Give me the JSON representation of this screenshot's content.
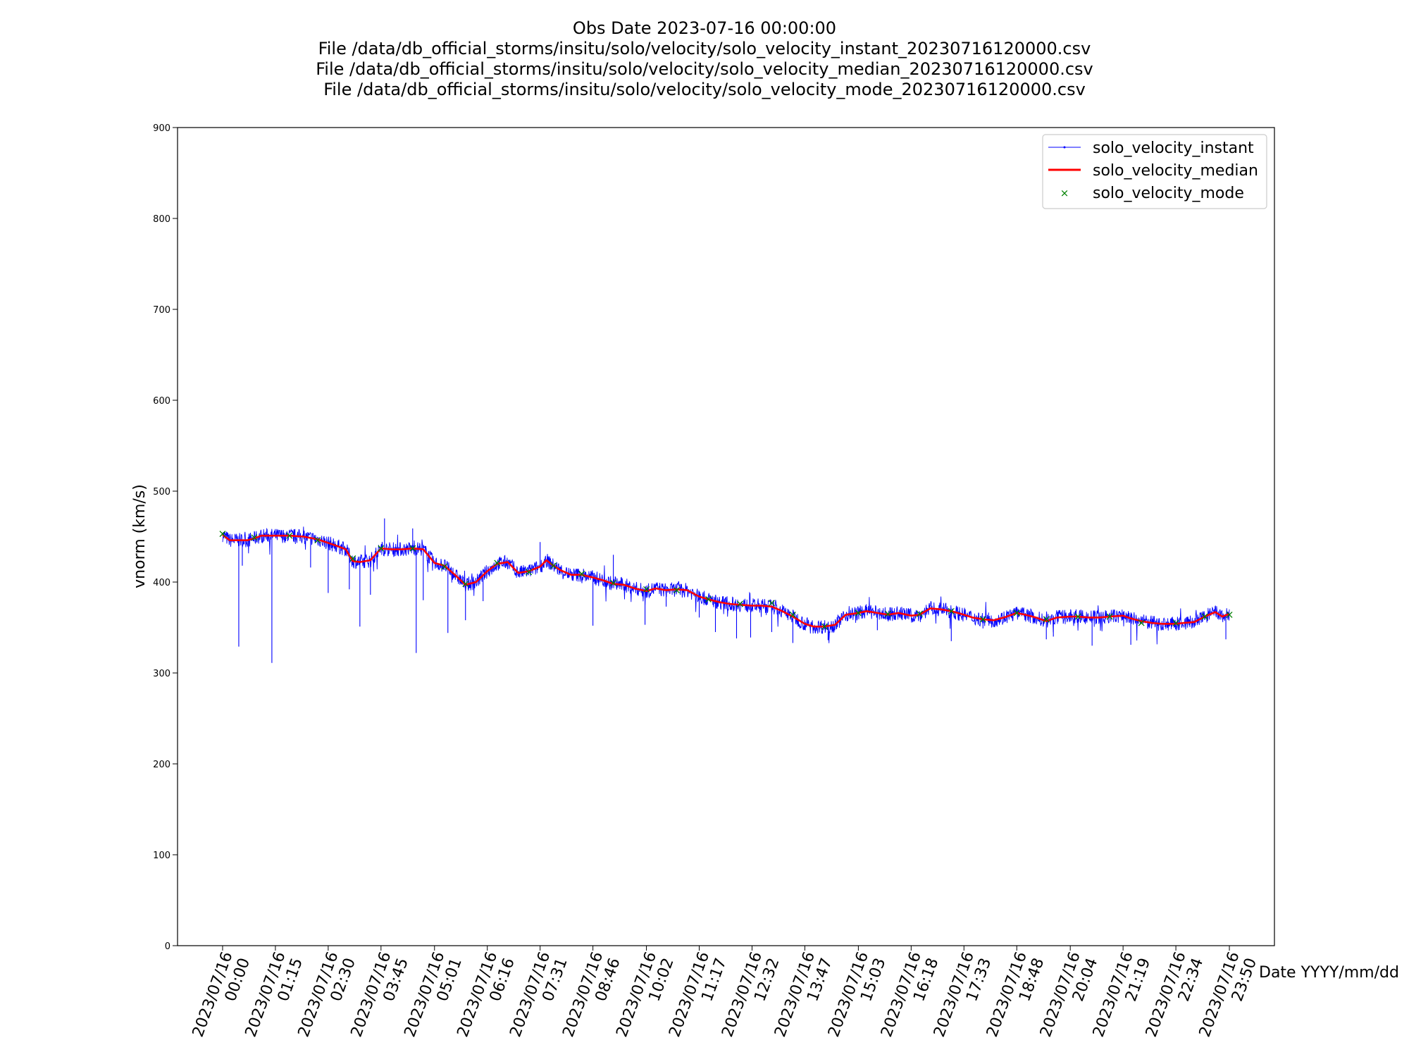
{
  "chart_data": {
    "type": "line",
    "title": [
      "Obs Date 2023-07-16 00:00:00",
      "File /data/db_official_storms/insitu/solo/velocity/solo_velocity_instant_20230716120000.csv",
      "File /data/db_official_storms/insitu/solo/velocity/solo_velocity_median_20230716120000.csv",
      "File /data/db_official_storms/insitu/solo/velocity/solo_velocity_mode_20230716120000.csv"
    ],
    "xlabel": "Date YYYY/mm/dd",
    "ylabel": "vnorm (km/s)",
    "ylim": [
      0,
      900
    ],
    "yticks": [
      0,
      100,
      200,
      300,
      400,
      500,
      600,
      700,
      800,
      900
    ],
    "xlim": [
      "2023/07/15 22:56",
      "2023/07/17 00:54"
    ],
    "xticks": [
      {
        "t": "00:00",
        "label": [
          "2023/07/16",
          "00:00"
        ]
      },
      {
        "t": "01:15",
        "label": [
          "2023/07/16",
          "01:15"
        ]
      },
      {
        "t": "02:30",
        "label": [
          "2023/07/16",
          "02:30"
        ]
      },
      {
        "t": "03:45",
        "label": [
          "2023/07/16",
          "03:45"
        ]
      },
      {
        "t": "05:01",
        "label": [
          "2023/07/16",
          "05:01"
        ]
      },
      {
        "t": "06:16",
        "label": [
          "2023/07/16",
          "06:16"
        ]
      },
      {
        "t": "07:31",
        "label": [
          "2023/07/16",
          "07:31"
        ]
      },
      {
        "t": "08:46",
        "label": [
          "2023/07/16",
          "08:46"
        ]
      },
      {
        "t": "10:02",
        "label": [
          "2023/07/16",
          "10:02"
        ]
      },
      {
        "t": "11:17",
        "label": [
          "2023/07/16",
          "11:17"
        ]
      },
      {
        "t": "12:32",
        "label": [
          "2023/07/16",
          "12:32"
        ]
      },
      {
        "t": "13:47",
        "label": [
          "2023/07/16",
          "13:47"
        ]
      },
      {
        "t": "15:03",
        "label": [
          "2023/07/16",
          "15:03"
        ]
      },
      {
        "t": "16:18",
        "label": [
          "2023/07/16",
          "16:18"
        ]
      },
      {
        "t": "17:33",
        "label": [
          "2023/07/16",
          "17:33"
        ]
      },
      {
        "t": "18:48",
        "label": [
          "2023/07/16",
          "18:48"
        ]
      },
      {
        "t": "20:04",
        "label": [
          "2023/07/16",
          "20:04"
        ]
      },
      {
        "t": "21:19",
        "label": [
          "2023/07/16",
          "21:19"
        ]
      },
      {
        "t": "22:34",
        "label": [
          "2023/07/16",
          "22:34"
        ]
      },
      {
        "t": "23:50",
        "label": [
          "2023/07/16",
          "23:50"
        ]
      }
    ],
    "grid": false,
    "legend_position": "top-right",
    "series": [
      {
        "name": "solo_velocity_instant",
        "color": "#0000ff",
        "style": "thin line with point markers",
        "x": [
          "00:00",
          "00:10",
          "00:23",
          "00:35",
          "00:45",
          "00:55",
          "01:15",
          "01:35",
          "01:55",
          "02:15",
          "02:30",
          "02:45",
          "02:55",
          "03:05",
          "03:15",
          "03:30",
          "03:45",
          "04:00",
          "04:15",
          "04:30",
          "04:45",
          "05:01",
          "05:15",
          "05:30",
          "05:45",
          "06:00",
          "06:16",
          "06:30",
          "06:45",
          "07:00",
          "07:15",
          "07:31",
          "07:40",
          "07:50",
          "08:00",
          "08:15",
          "08:30",
          "08:46",
          "09:00",
          "09:15",
          "09:30",
          "09:45",
          "10:02",
          "10:15",
          "10:30",
          "10:45",
          "11:00",
          "11:17",
          "11:30",
          "11:45",
          "12:00",
          "12:15",
          "12:32",
          "12:45",
          "13:00",
          "13:15",
          "13:30",
          "13:47",
          "14:00",
          "14:15",
          "14:30",
          "14:45",
          "15:03",
          "15:15",
          "15:30",
          "15:45",
          "16:00",
          "16:18",
          "16:30",
          "16:45",
          "17:00",
          "17:15",
          "17:33",
          "17:45",
          "18:00",
          "18:15",
          "18:30",
          "18:48",
          "19:00",
          "19:15",
          "19:30",
          "19:45",
          "20:04",
          "20:15",
          "20:30",
          "20:45",
          "21:00",
          "21:19",
          "21:30",
          "21:45",
          "22:00",
          "22:15",
          "22:34",
          "22:45",
          "23:00",
          "23:15",
          "23:30",
          "23:40",
          "23:50"
        ],
        "values": [
          452,
          446,
          446,
          446,
          448,
          451,
          451,
          451,
          450,
          447,
          443,
          439,
          436,
          423,
          422,
          424,
          437,
          436,
          436,
          437,
          436,
          421,
          418,
          408,
          397,
          400,
          412,
          420,
          422,
          410,
          412,
          417,
          424,
          418,
          413,
          408,
          408,
          405,
          402,
          398,
          397,
          393,
          390,
          393,
          391,
          392,
          391,
          384,
          381,
          378,
          376,
          375,
          374,
          374,
          373,
          368,
          362,
          354,
          351,
          351,
          353,
          364,
          366,
          368,
          366,
          364,
          366,
          363,
          364,
          371,
          370,
          368,
          364,
          361,
          359,
          358,
          361,
          366,
          364,
          361,
          357,
          361,
          362,
          362,
          361,
          361,
          362,
          363,
          360,
          357,
          355,
          354,
          354,
          355,
          356,
          362,
          367,
          362,
          365
        ],
        "spikes": [
          {
            "t": "00:23",
            "y": 329
          },
          {
            "t": "00:28",
            "y": 418
          },
          {
            "t": "01:10",
            "y": 311
          },
          {
            "t": "02:05",
            "y": 416
          },
          {
            "t": "02:30",
            "y": 388
          },
          {
            "t": "03:00",
            "y": 392
          },
          {
            "t": "03:15",
            "y": 351
          },
          {
            "t": "03:30",
            "y": 386
          },
          {
            "t": "03:50",
            "y": 470
          },
          {
            "t": "04:30",
            "y": 459
          },
          {
            "t": "04:35",
            "y": 322
          },
          {
            "t": "04:45",
            "y": 380
          },
          {
            "t": "05:20",
            "y": 344
          },
          {
            "t": "05:45",
            "y": 358
          },
          {
            "t": "06:10",
            "y": 379
          },
          {
            "t": "07:31",
            "y": 444
          },
          {
            "t": "08:46",
            "y": 352
          },
          {
            "t": "09:15",
            "y": 430
          },
          {
            "t": "10:00",
            "y": 353
          },
          {
            "t": "10:30",
            "y": 373
          },
          {
            "t": "11:17",
            "y": 361
          },
          {
            "t": "11:40",
            "y": 345
          },
          {
            "t": "12:10",
            "y": 338
          },
          {
            "t": "12:30",
            "y": 339
          },
          {
            "t": "13:00",
            "y": 345
          },
          {
            "t": "13:30",
            "y": 333
          },
          {
            "t": "14:20",
            "y": 336
          },
          {
            "t": "15:30",
            "y": 347
          },
          {
            "t": "17:15",
            "y": 335
          },
          {
            "t": "18:00",
            "y": 349
          },
          {
            "t": "19:30",
            "y": 337
          },
          {
            "t": "19:40",
            "y": 340
          },
          {
            "t": "20:35",
            "y": 330
          },
          {
            "t": "21:30",
            "y": 331
          },
          {
            "t": "23:45",
            "y": 337
          }
        ]
      },
      {
        "name": "solo_velocity_median",
        "color": "#ff0000",
        "style": "solid line",
        "x": [
          "00:00",
          "00:10",
          "00:23",
          "00:35",
          "00:45",
          "00:55",
          "01:15",
          "01:35",
          "01:55",
          "02:15",
          "02:30",
          "02:45",
          "02:55",
          "03:05",
          "03:15",
          "03:30",
          "03:45",
          "04:00",
          "04:15",
          "04:30",
          "04:45",
          "05:01",
          "05:15",
          "05:30",
          "05:45",
          "06:00",
          "06:16",
          "06:30",
          "06:45",
          "07:00",
          "07:15",
          "07:31",
          "07:40",
          "07:50",
          "08:00",
          "08:15",
          "08:30",
          "08:46",
          "09:00",
          "09:15",
          "09:30",
          "09:45",
          "10:02",
          "10:15",
          "10:30",
          "10:45",
          "11:00",
          "11:17",
          "11:30",
          "11:45",
          "12:00",
          "12:15",
          "12:32",
          "12:45",
          "13:00",
          "13:15",
          "13:30",
          "13:47",
          "14:00",
          "14:15",
          "14:30",
          "14:45",
          "15:03",
          "15:15",
          "15:30",
          "15:45",
          "16:00",
          "16:18",
          "16:30",
          "16:45",
          "17:00",
          "17:15",
          "17:33",
          "17:45",
          "18:00",
          "18:15",
          "18:30",
          "18:48",
          "19:00",
          "19:15",
          "19:30",
          "19:45",
          "20:04",
          "20:15",
          "20:30",
          "20:45",
          "21:00",
          "21:19",
          "21:30",
          "21:45",
          "22:00",
          "22:15",
          "22:34",
          "22:45",
          "23:00",
          "23:15",
          "23:30",
          "23:40",
          "23:50"
        ],
        "values": [
          452,
          446,
          446,
          446,
          448,
          451,
          451,
          451,
          450,
          447,
          443,
          439,
          436,
          423,
          422,
          424,
          437,
          436,
          436,
          437,
          436,
          421,
          418,
          408,
          397,
          400,
          412,
          420,
          422,
          410,
          412,
          417,
          424,
          418,
          413,
          408,
          408,
          405,
          402,
          398,
          397,
          393,
          390,
          393,
          391,
          392,
          391,
          384,
          381,
          378,
          376,
          375,
          374,
          374,
          373,
          368,
          362,
          354,
          351,
          351,
          353,
          364,
          366,
          368,
          366,
          364,
          366,
          363,
          364,
          371,
          370,
          368,
          364,
          361,
          359,
          358,
          361,
          366,
          364,
          361,
          357,
          361,
          362,
          362,
          361,
          361,
          362,
          363,
          360,
          357,
          355,
          354,
          354,
          355,
          356,
          362,
          367,
          362,
          365
        ]
      },
      {
        "name": "solo_velocity_mode",
        "color": "#008000",
        "style": "x markers",
        "x": [
          "00:00",
          "00:45",
          "01:35",
          "02:15",
          "03:05",
          "03:45",
          "04:30",
          "05:15",
          "05:45",
          "06:30",
          "07:15",
          "07:50",
          "08:30",
          "09:15",
          "10:02",
          "10:45",
          "11:30",
          "12:15",
          "13:00",
          "13:30",
          "14:15",
          "15:03",
          "15:45",
          "16:30",
          "17:15",
          "18:00",
          "18:48",
          "19:30",
          "20:15",
          "21:00",
          "21:45",
          "22:34",
          "23:15",
          "23:50"
        ],
        "values": [
          453,
          449,
          451,
          446,
          426,
          437,
          437,
          417,
          398,
          421,
          411,
          418,
          409,
          399,
          392,
          391,
          381,
          376,
          377,
          364,
          351,
          366,
          365,
          365,
          368,
          359,
          366,
          359,
          362,
          362,
          355,
          355,
          362,
          364
        ]
      }
    ]
  }
}
